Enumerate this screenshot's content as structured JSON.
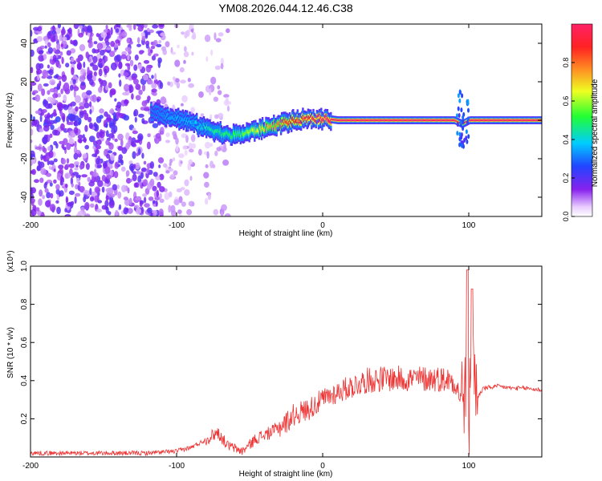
{
  "chart_data": [
    {
      "type": "heatmap",
      "title": "YM08.2026.044.12.46.C38",
      "xlabel": "Height of straight line (km)",
      "ylabel": "Frequency (Hz)",
      "xlim": [
        -200,
        150
      ],
      "ylim": [
        -50,
        50
      ],
      "x_ticks": [
        -200,
        -100,
        0,
        100
      ],
      "x_tick_labels": [
        "-200",
        "-100",
        "0",
        "100"
      ],
      "y_ticks": [
        -40,
        -20,
        0,
        20,
        40
      ],
      "y_tick_labels": [
        "-40",
        "-20",
        "0",
        "20",
        "40"
      ],
      "colorbar": {
        "label": "Normalized spectral amplitude",
        "range": [
          0,
          1
        ],
        "ticks": [
          0.0,
          0.2,
          0.4,
          0.6,
          0.8
        ],
        "tick_labels": [
          "0.0",
          "0.2",
          "0.4",
          "0.6",
          "0.8"
        ]
      },
      "ridge": {
        "x": [
          -115,
          -105,
          -95,
          -85,
          -75,
          -65,
          -55,
          -45,
          -35,
          -25,
          -15,
          -5,
          0,
          10,
          90,
          95,
          100,
          150
        ],
        "freq": [
          4,
          2,
          0,
          -3,
          -5,
          -8,
          -7,
          -5,
          -3,
          -1,
          0,
          1,
          1,
          0,
          0,
          -2,
          0,
          0
        ],
        "amplitude": [
          0.3,
          0.35,
          0.35,
          0.4,
          0.45,
          0.5,
          0.55,
          0.65,
          0.75,
          0.85,
          0.9,
          0.95,
          1.0,
          1.0,
          1.0,
          0.8,
          1.0,
          1.0
        ]
      }
    },
    {
      "type": "line",
      "xlabel": "Height of straight line (km)",
      "ylabel": "SNR (10 * v/v)",
      "y_multiplier_label": "(x10⁴)",
      "xlim": [
        -200,
        150
      ],
      "ylim": [
        0,
        1.0
      ],
      "x_ticks": [
        -200,
        -100,
        0,
        100
      ],
      "x_tick_labels": [
        "-200",
        "-100",
        "0",
        "100"
      ],
      "y_ticks": [
        0.2,
        0.4,
        0.6,
        0.8,
        1.0
      ],
      "y_tick_labels": [
        "0.2",
        "0.4",
        "0.6",
        "0.8",
        "1.0"
      ],
      "color": "#ee3333",
      "series": [
        {
          "name": "SNR",
          "x": [
            -200,
            -150,
            -120,
            -100,
            -90,
            -80,
            -72,
            -65,
            -55,
            -45,
            -35,
            -25,
            -20,
            -10,
            0,
            10,
            20,
            30,
            40,
            50,
            60,
            70,
            80,
            90,
            95,
            98,
            100,
            102,
            105,
            110,
            120,
            130,
            140,
            150
          ],
          "y": [
            0.02,
            0.02,
            0.02,
            0.03,
            0.05,
            0.09,
            0.13,
            0.06,
            0.03,
            0.1,
            0.13,
            0.18,
            0.22,
            0.25,
            0.3,
            0.34,
            0.37,
            0.4,
            0.41,
            0.41,
            0.41,
            0.41,
            0.41,
            0.4,
            0.3,
            0.35,
            0.1,
            0.8,
            0.3,
            0.36,
            0.37,
            0.36,
            0.36,
            0.35
          ]
        }
      ]
    }
  ]
}
